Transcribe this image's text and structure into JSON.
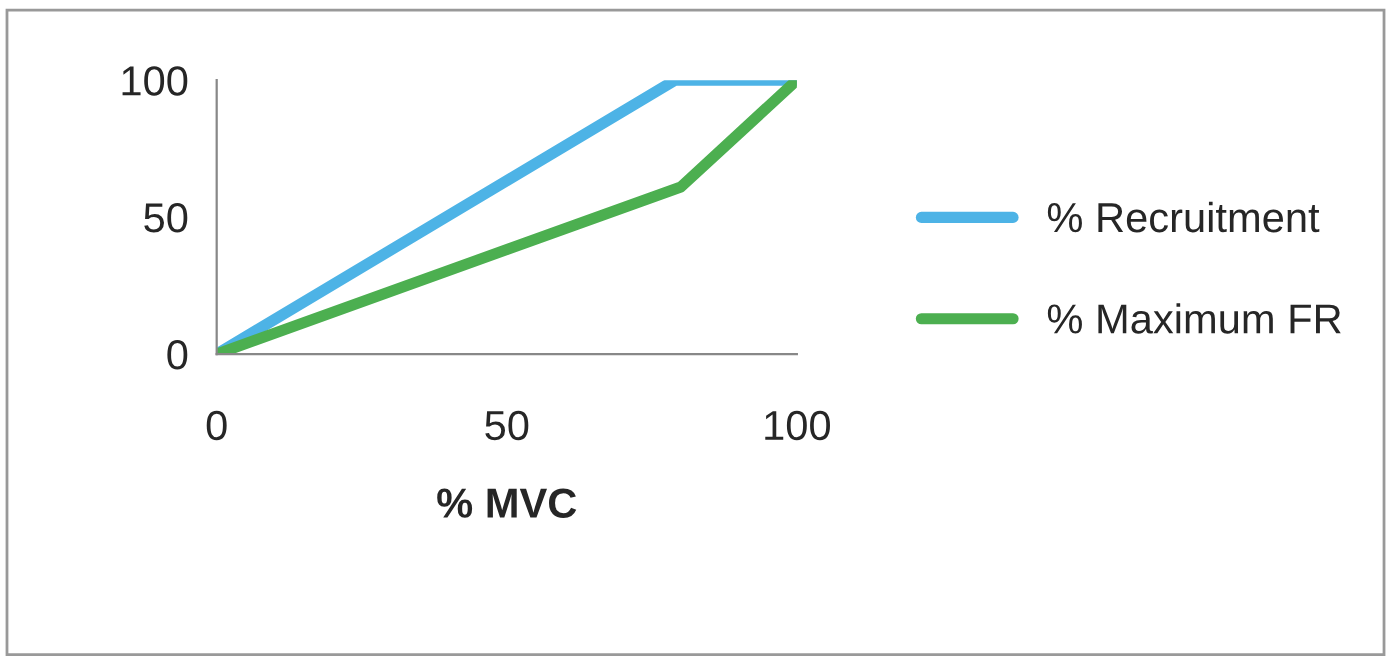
{
  "chart_data": {
    "type": "line",
    "xlabel": "% MVC",
    "series": [
      {
        "name": "% Recruitment",
        "color": "#4db3e6",
        "x": [
          0,
          79,
          100
        ],
        "values": [
          0,
          100,
          100
        ]
      },
      {
        "name": "% Maximum FR",
        "color": "#4caf50",
        "x": [
          0,
          80,
          100
        ],
        "values": [
          0,
          61,
          100
        ]
      }
    ],
    "xlim": [
      0,
      100
    ],
    "xticks": [
      0,
      50,
      100
    ],
    "ylim": [
      0,
      100
    ],
    "yticks": [
      0,
      50,
      100
    ],
    "grid": false,
    "legend": "right",
    "marker": "none",
    "line_style": "solid"
  }
}
